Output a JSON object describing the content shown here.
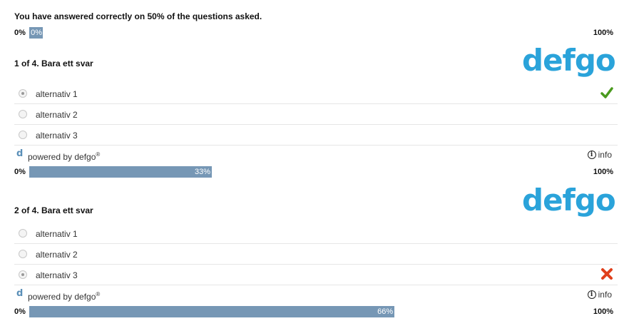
{
  "summary": {
    "text": "You have answered correctly on 50% of the questions asked.",
    "progress": {
      "min_label": "0%",
      "max_label": "100%",
      "value_label": "0%",
      "value": 0
    }
  },
  "questions": [
    {
      "title": "1 of 4. Bara ett svar",
      "logo": "defgo",
      "options": [
        {
          "label": "alternativ 1",
          "selected": true,
          "result": "correct"
        },
        {
          "label": "alternativ 2",
          "selected": false
        },
        {
          "label": "alternativ 3",
          "selected": false
        }
      ],
      "footer": {
        "powered": "powered by defgo",
        "registered": "®",
        "info": "info"
      },
      "progress": {
        "min_label": "0%",
        "max_label": "100%",
        "value_label": "33%",
        "value": 0.33
      }
    },
    {
      "title": "2 of 4. Bara ett svar",
      "logo": "defgo",
      "options": [
        {
          "label": "alternativ 1",
          "selected": false
        },
        {
          "label": "alternativ 2",
          "selected": false
        },
        {
          "label": "alternativ 3",
          "selected": true,
          "result": "incorrect"
        }
      ],
      "footer": {
        "powered": "powered by defgo",
        "registered": "®",
        "info": "info"
      },
      "progress": {
        "min_label": "0%",
        "max_label": "100%",
        "value_label": "66%",
        "value": 0.66
      }
    }
  ],
  "colors": {
    "accent": "#2aa3da",
    "progress_fill": "#7697b5",
    "correct": "#4a9a1e",
    "incorrect": "#e0401c"
  },
  "icons": {
    "correct": "checkmark-icon",
    "incorrect": "cross-icon",
    "info": "info-icon",
    "brand": "d-icon"
  }
}
